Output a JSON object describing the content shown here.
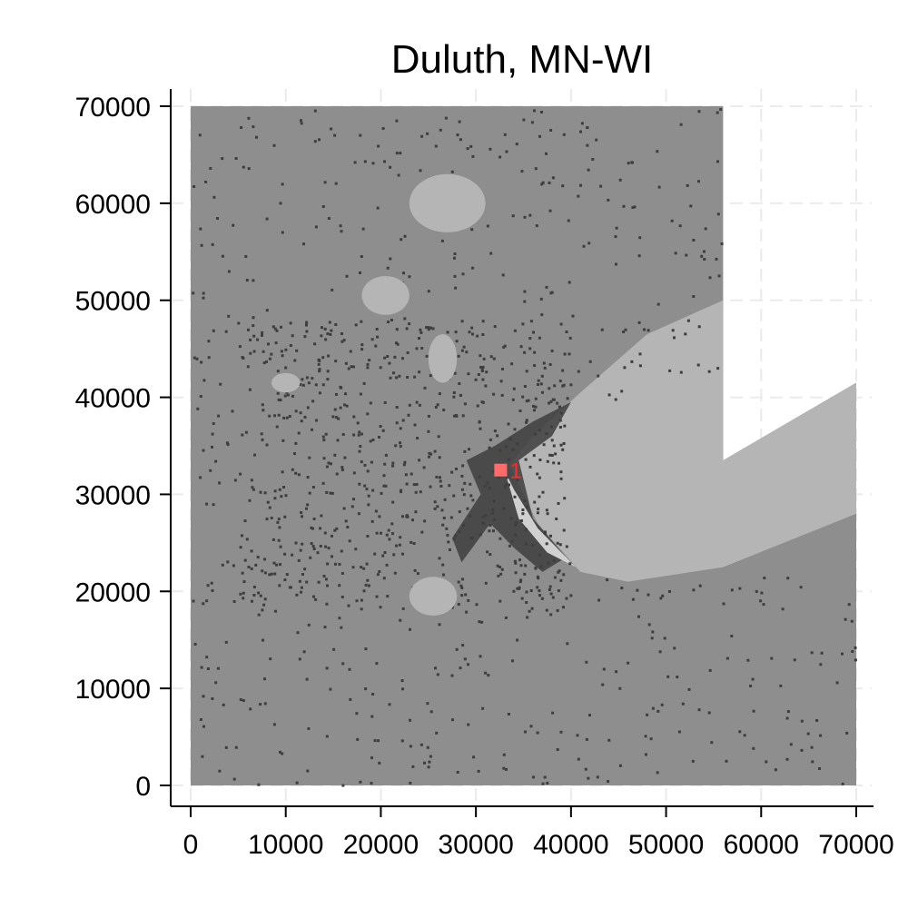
{
  "title": "Duluth, MN-WI",
  "colors": {
    "background": "#ffffff",
    "grid": "#ebebeb",
    "land": "#8e8e8e",
    "developed": "#3e3e3e",
    "water": "#b5b5b5",
    "marker": "#ff6b6b",
    "marker_label": "#ff2a2a",
    "axis": "#000000"
  },
  "chart_data": {
    "type": "raster-map",
    "title": "Duluth, MN-WI",
    "xlabel": "",
    "ylabel": "",
    "xlim": [
      0,
      70000
    ],
    "ylim": [
      0,
      70000
    ],
    "x_ticks": [
      0,
      10000,
      20000,
      30000,
      40000,
      50000,
      60000,
      70000
    ],
    "y_ticks": [
      0,
      10000,
      20000,
      30000,
      40000,
      50000,
      60000,
      70000
    ],
    "x_tick_labels": [
      "0",
      "10000",
      "20000",
      "30000",
      "40000",
      "50000",
      "60000",
      "70000"
    ],
    "y_tick_labels": [
      "0",
      "10000",
      "20000",
      "30000",
      "40000",
      "50000",
      "60000",
      "70000"
    ],
    "grid": true,
    "raster_extent": {
      "x": [
        0,
        70000
      ],
      "y": [
        0,
        70000
      ]
    },
    "no_data_region_upper_right": {
      "x_from": 56000,
      "boundary": [
        [
          56000,
          33500
        ],
        [
          70000,
          41500
        ]
      ]
    },
    "lake_superior_polygon": [
      [
        56000,
        50000
      ],
      [
        48000,
        46500
      ],
      [
        41000,
        40500
      ],
      [
        36000,
        36000
      ],
      [
        33500,
        33000
      ],
      [
        36500,
        27000
      ],
      [
        41000,
        22000
      ],
      [
        46000,
        21000
      ],
      [
        56000,
        22500
      ],
      [
        70000,
        28000
      ],
      [
        70000,
        41500
      ],
      [
        56000,
        33500
      ]
    ],
    "harbor_polygon": [
      [
        33000,
        32500
      ],
      [
        34500,
        27500
      ],
      [
        37500,
        24000
      ],
      [
        40500,
        22500
      ],
      [
        36500,
        26500
      ],
      [
        34000,
        30500
      ]
    ],
    "developed_core_polygon": [
      [
        32000,
        35000
      ],
      [
        36000,
        37500
      ],
      [
        40000,
        39500
      ],
      [
        38000,
        36000
      ],
      [
        34500,
        33500
      ],
      [
        36000,
        27500
      ],
      [
        39500,
        23500
      ],
      [
        37000,
        22000
      ],
      [
        34000,
        24500
      ],
      [
        31500,
        27000
      ],
      [
        28500,
        23000
      ],
      [
        27500,
        25500
      ],
      [
        30500,
        30000
      ],
      [
        29000,
        33500
      ]
    ],
    "points": [
      {
        "id": "1",
        "x": 32600,
        "y": 32500
      }
    ]
  }
}
